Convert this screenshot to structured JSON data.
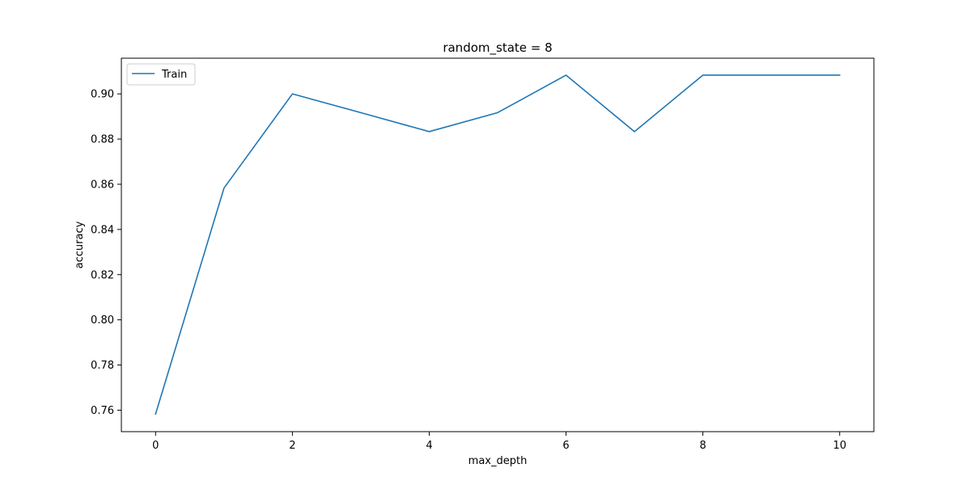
{
  "chart_data": {
    "type": "line",
    "title": "random_state = 8",
    "xlabel": "max_depth",
    "ylabel": "accuracy",
    "xlim": [
      -0.5,
      10.5
    ],
    "ylim": [
      0.7505,
      0.9158
    ],
    "xticks": [
      0,
      2,
      4,
      6,
      8,
      10
    ],
    "xtick_labels": [
      "0",
      "2",
      "4",
      "6",
      "8",
      "10"
    ],
    "yticks": [
      0.76,
      0.78,
      0.8,
      0.82,
      0.84,
      0.86,
      0.88,
      0.9
    ],
    "ytick_labels": [
      "0.76",
      "0.78",
      "0.80",
      "0.82",
      "0.84",
      "0.86",
      "0.88",
      "0.90"
    ],
    "grid": false,
    "legend": {
      "placement": "top-left",
      "entries": [
        "Train"
      ]
    },
    "series": [
      {
        "name": "Train",
        "color": "#1f77b4",
        "x": [
          0,
          1,
          2,
          3,
          4,
          5,
          6,
          7,
          8,
          9,
          10
        ],
        "y": [
          0.7583,
          0.8583,
          0.9,
          0.8917,
          0.8833,
          0.8917,
          0.9083,
          0.8833,
          0.9083,
          0.9083,
          0.9083
        ]
      }
    ]
  }
}
